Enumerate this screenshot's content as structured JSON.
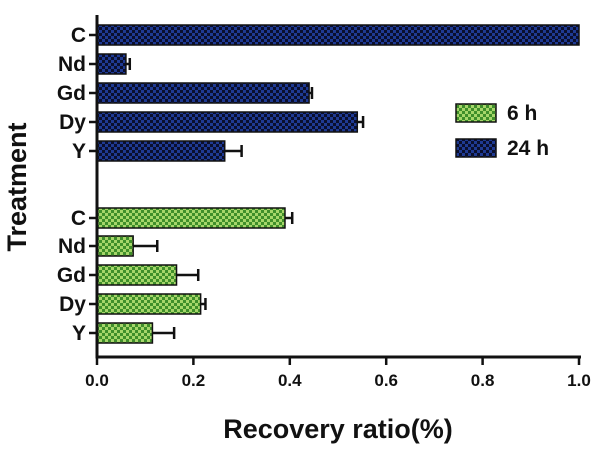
{
  "chart_data": {
    "type": "bar",
    "orientation": "horizontal",
    "xlabel": "Recovery ratio(%)",
    "ylabel": "Treatment",
    "xlim": [
      0.0,
      1.0
    ],
    "xticks": [
      "0.0",
      "0.2",
      "0.4",
      "0.6",
      "0.8",
      "1.0"
    ],
    "xtick_values": [
      0.0,
      0.2,
      0.4,
      0.6,
      0.8,
      1.0
    ],
    "grid": false,
    "legend_position": "right",
    "series": [
      {
        "name": "24 h",
        "color": "#1f3a93",
        "pattern_color": "#0a0f2e",
        "categories": [
          "C",
          "Nd",
          "Gd",
          "Dy",
          "Y"
        ],
        "values": [
          1.0,
          0.06,
          0.44,
          0.54,
          0.265
        ],
        "errors": [
          0.0,
          0.008,
          0.006,
          0.012,
          0.035
        ]
      },
      {
        "name": "6 h",
        "color": "#3f8f2a",
        "pattern_color": "#a6d66a",
        "categories": [
          "C",
          "Nd",
          "Gd",
          "Dy",
          "Y"
        ],
        "values": [
          0.39,
          0.075,
          0.165,
          0.215,
          0.115
        ],
        "errors": [
          0.015,
          0.05,
          0.045,
          0.01,
          0.045
        ]
      }
    ],
    "legend_order": [
      "6 h",
      "24 h"
    ]
  }
}
